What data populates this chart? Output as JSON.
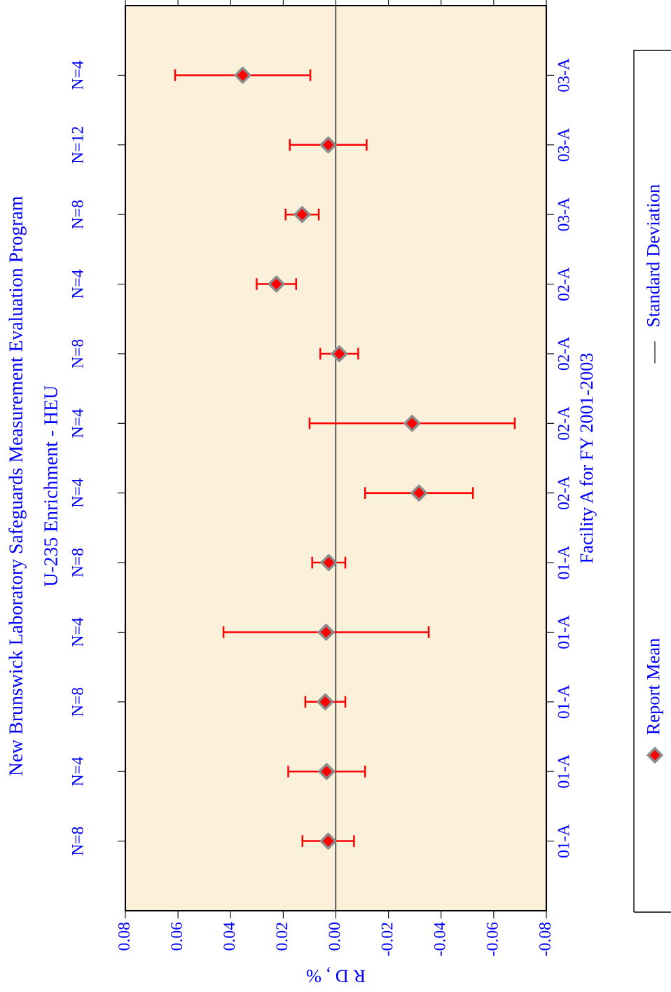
{
  "chart_data": {
    "type": "scatter",
    "orientation": "horizontal",
    "title": "New Brunswick Laboratory Safeguards Measurement Evaluation Program",
    "subtitle": "U-235 Enrichment - HEU",
    "xlabel": "R D , %",
    "ylabel": "Facility A for FY 2001-2003",
    "categories": [
      "03-A",
      "03-A",
      "03-A",
      "02-A",
      "02-A",
      "02-A",
      "02-A",
      "01-A",
      "01-A",
      "01-A",
      "01-A",
      "01-A"
    ],
    "y2_categories": [
      "N=4",
      "N=12",
      "N=8",
      "N=4",
      "N=8",
      "N=4",
      "N=4",
      "N=8",
      "N=4",
      "N=8",
      "N=4",
      "N=8"
    ],
    "series": [
      {
        "name": "Report Mean",
        "color": "#ff0000",
        "values": [
          0.0354,
          0.0029,
          0.0128,
          0.0226,
          -0.0013,
          -0.029,
          -0.0316,
          0.0027,
          0.0037,
          0.004,
          0.0035,
          0.0029
        ],
        "errors": [
          0.0257,
          0.0146,
          0.0063,
          0.0075,
          0.0072,
          0.039,
          0.0205,
          0.0063,
          0.039,
          0.0076,
          0.0146,
          0.0098
        ]
      }
    ],
    "annotations": [
      "Standard Deviation"
    ],
    "xlim": [
      0.08,
      -0.08
    ],
    "xticks": [
      {
        "value": 0.08,
        "label": "0.08"
      },
      {
        "value": 0.06,
        "label": "0.06"
      },
      {
        "value": 0.04,
        "label": "0.04"
      },
      {
        "value": 0.02,
        "label": "0.02"
      },
      {
        "value": 0,
        "label": "0.00"
      },
      {
        "value": -0.02,
        "label": "-0.02"
      },
      {
        "value": -0.04,
        "label": "-0.04"
      },
      {
        "value": -0.06,
        "label": "-0.06"
      },
      {
        "value": -0.08,
        "label": "-0.08"
      }
    ],
    "ref_lines": [
      {
        "axis": "x",
        "value": 0,
        "color": "#000000"
      }
    ],
    "marker": "diamond",
    "legend": "right",
    "grid": false
  }
}
